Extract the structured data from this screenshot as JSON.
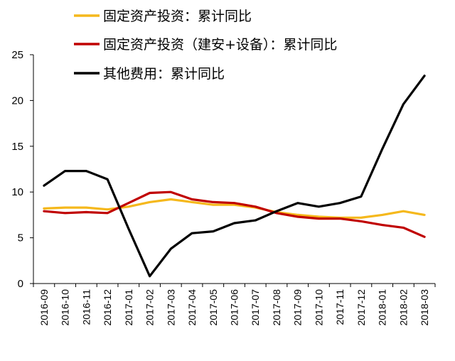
{
  "chart_data": {
    "type": "line",
    "categories": [
      "2016-09",
      "2016-10",
      "2016-11",
      "2016-12",
      "2017-01",
      "2017-02",
      "2017-03",
      "2017-04",
      "2017-05",
      "2017-06",
      "2017-07",
      "2017-08",
      "2017-09",
      "2017-10",
      "2017-11",
      "2017-12",
      "2018-01",
      "2018-02",
      "2018-03"
    ],
    "series": [
      {
        "name": "固定资产投资：累计同比",
        "color": "#f5b81c",
        "values": [
          8.2,
          8.3,
          8.3,
          8.1,
          8.4,
          8.9,
          9.2,
          8.9,
          8.6,
          8.6,
          8.3,
          7.8,
          7.5,
          7.3,
          7.2,
          7.2,
          7.5,
          7.9,
          7.5
        ]
      },
      {
        "name": "固定资产投资（建安+设备）：累计同比",
        "color": "#c00000",
        "values": [
          7.9,
          7.7,
          7.8,
          7.7,
          8.8,
          9.9,
          10.0,
          9.2,
          8.9,
          8.8,
          8.4,
          7.7,
          7.3,
          7.1,
          7.1,
          6.8,
          6.4,
          6.1,
          5.1
        ]
      },
      {
        "name": "其他费用：累计同比",
        "color": "#000000",
        "values": [
          10.7,
          12.3,
          12.3,
          11.4,
          6.0,
          0.8,
          3.8,
          5.5,
          5.7,
          6.6,
          6.9,
          7.9,
          8.8,
          8.4,
          8.8,
          9.5,
          14.7,
          19.6,
          22.7
        ]
      }
    ],
    "yticks": [
      0,
      5,
      10,
      15,
      20,
      25
    ],
    "ylim": [
      0,
      25
    ],
    "grid": false,
    "legend_position": "top-left"
  }
}
